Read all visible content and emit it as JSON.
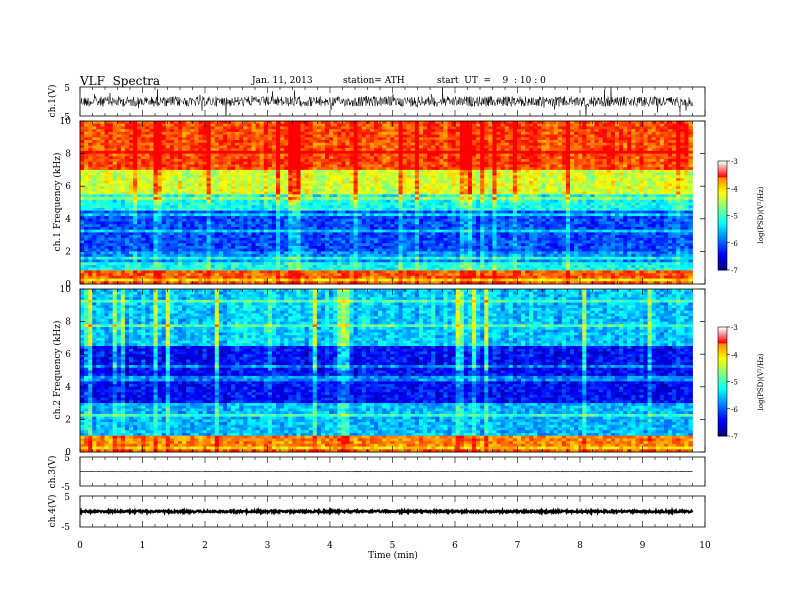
{
  "header": {
    "title": "VLF  Spectra",
    "date": "Jan. 11, 2013",
    "station": "station= ATH",
    "start": "start  UT  =    9  : 10 : 0"
  },
  "chart_data": [
    {
      "type": "line",
      "panel": "ch1-waveform",
      "ylabel": "ch.1(V)",
      "ylim": [
        -5,
        5
      ],
      "y_ticks": [
        "5",
        "-5"
      ],
      "baseline": 0,
      "x_range_min": [
        0,
        9.8
      ],
      "note_values": "dense noisy waveform, amplitude roughly within ±1.5 V"
    },
    {
      "type": "heatmap",
      "panel": "ch1-spectrogram",
      "ylabel": "ch.1  Frequency  (kHz)",
      "ylim": [
        0,
        10
      ],
      "y_ticks": [
        "0",
        "2",
        "4",
        "6",
        "8",
        "10"
      ],
      "x_range_min": [
        0,
        9.8
      ],
      "color_scale_label": "log(PSD)(V²/Hz)",
      "color_range": [
        -7,
        -3
      ],
      "colorbar_ticks": [
        "-3",
        "-4",
        "-5",
        "-6",
        "-7"
      ],
      "band_levels": [
        {
          "f_khz": [
            0.0,
            0.3
          ],
          "level": -4.0
        },
        {
          "f_khz": [
            0.3,
            0.8
          ],
          "level": -3.4
        },
        {
          "f_khz": [
            0.8,
            2.0
          ],
          "level": -5.8
        },
        {
          "f_khz": [
            2.0,
            4.5
          ],
          "level": -6.1
        },
        {
          "f_khz": [
            4.5,
            5.5
          ],
          "level": -5.2
        },
        {
          "f_khz": [
            5.5,
            7.0
          ],
          "level": -4.3
        },
        {
          "f_khz": [
            7.0,
            10.0
          ],
          "level": -3.3
        }
      ]
    },
    {
      "type": "heatmap",
      "panel": "ch2-spectrogram",
      "ylabel": "ch.2  Frequency  (kHz)",
      "ylim": [
        0,
        10
      ],
      "y_ticks": [
        "0",
        "2",
        "4",
        "6",
        "8",
        "10"
      ],
      "x_range_min": [
        0,
        9.8
      ],
      "color_scale_label": "log(PSD)(V²/Hz)",
      "color_range": [
        -7,
        -3
      ],
      "colorbar_ticks": [
        "-3",
        "-4",
        "-5",
        "-6",
        "-7"
      ],
      "band_levels": [
        {
          "f_khz": [
            0.0,
            0.3
          ],
          "level": -4.0
        },
        {
          "f_khz": [
            0.3,
            1.0
          ],
          "level": -3.6
        },
        {
          "f_khz": [
            1.0,
            3.0
          ],
          "level": -5.6
        },
        {
          "f_khz": [
            3.0,
            6.5
          ],
          "level": -6.4
        },
        {
          "f_khz": [
            6.5,
            10.0
          ],
          "level": -5.5
        }
      ]
    },
    {
      "type": "line",
      "panel": "ch3-waveform",
      "ylabel": "ch.3(V)",
      "ylim": [
        -5,
        5
      ],
      "y_ticks": [
        "5",
        "-5"
      ],
      "baseline": 0,
      "x_range_min": [
        0,
        9.8
      ],
      "note_values": "flat trace near 0 V"
    },
    {
      "type": "line",
      "panel": "ch4-waveform",
      "ylabel": "ch.4(V)",
      "ylim": [
        -5,
        5
      ],
      "y_ticks": [
        "5",
        "-5"
      ],
      "baseline": 0,
      "x_range_min": [
        0,
        9.8
      ],
      "note_values": "thick flat trace near 0 V"
    }
  ],
  "x_axis": {
    "label": "Time  (min)",
    "range": [
      0,
      10
    ],
    "ticks": [
      "0",
      "1",
      "2",
      "3",
      "4",
      "5",
      "6",
      "7",
      "8",
      "9",
      "10"
    ]
  },
  "colors": {
    "jet": [
      "#000080",
      "#0000ff",
      "#0080ff",
      "#00ffff",
      "#80ff80",
      "#ffff00",
      "#ff8000",
      "#ff0000"
    ],
    "colorbar_top": [
      "#ffffff",
      "#ff0000"
    ]
  }
}
